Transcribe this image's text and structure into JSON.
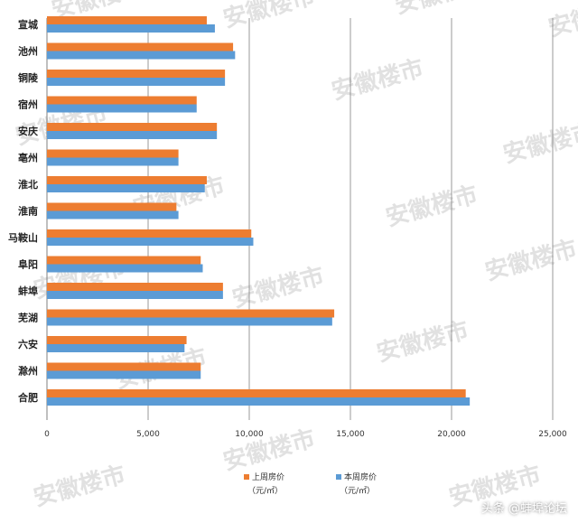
{
  "watermark": "安徽楼市",
  "source_tag": "头条 @蚌埠论坛",
  "colors": {
    "last_week": "#ED7D31",
    "this_week": "#5B9BD5",
    "grid": "#7f7f7f"
  },
  "chart_data": {
    "type": "bar",
    "orientation": "horizontal",
    "categories": [
      "宣城",
      "池州",
      "铜陵",
      "宿州",
      "安庆",
      "亳州",
      "淮北",
      "淮南",
      "马鞍山",
      "阜阳",
      "蚌埠",
      "芜湖",
      "六安",
      "滁州",
      "合肥"
    ],
    "series": [
      {
        "name": "上周房价",
        "unit": "（元/㎡）",
        "color": "#ED7D31",
        "values": [
          7900,
          9200,
          8800,
          7400,
          8400,
          6500,
          7900,
          6400,
          10100,
          7600,
          8700,
          14200,
          6900,
          7600,
          20700
        ]
      },
      {
        "name": "本周房价",
        "unit": "（元/㎡）",
        "color": "#5B9BD5",
        "values": [
          8300,
          9300,
          8800,
          7400,
          8400,
          6500,
          7800,
          6500,
          10200,
          7700,
          8700,
          14100,
          6800,
          7600,
          20900
        ]
      }
    ],
    "xlim": [
      0,
      25000
    ],
    "xticks": [
      "0",
      "5,000",
      "10,000",
      "15,000",
      "20,000",
      "25,000"
    ],
    "grid": true,
    "legend_position": "bottom"
  }
}
